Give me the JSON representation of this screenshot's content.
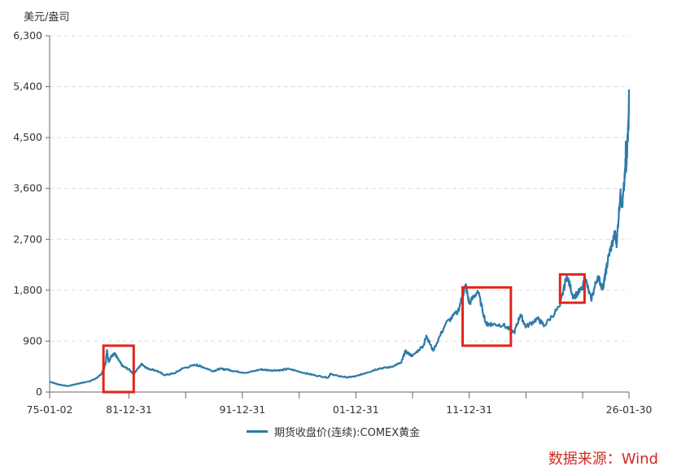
{
  "unit_label": "美元/盎司",
  "source_note": "数据来源：Wind",
  "colors": {
    "line": "#2e7aa8",
    "highlight_box": "#e3241b",
    "grid": "#dcdcdc",
    "axis": "#666666"
  },
  "chart_data": {
    "type": "line",
    "title": "",
    "xlabel": "",
    "ylabel": "美元/盎司",
    "grid": true,
    "legend_position": "bottom",
    "ylim": [
      0,
      6300
    ],
    "y_ticks": [
      0,
      900,
      1800,
      2700,
      3600,
      4500,
      5400,
      6300
    ],
    "y_tick_labels": [
      "0",
      "900",
      "1,800",
      "2,700",
      "3,600",
      "4,500",
      "5,400",
      "6,300"
    ],
    "x_range": [
      "1975-01-02",
      "2026-01-30"
    ],
    "x_tick_labels": [
      {
        "date": "1975-01-02",
        "label": "75-01-02"
      },
      {
        "date": "1981-12-31",
        "label": "81-12-31"
      },
      {
        "date": "1991-12-31",
        "label": "91-12-31"
      },
      {
        "date": "2001-12-31",
        "label": "01-12-31"
      },
      {
        "date": "2011-12-31",
        "label": "11-12-31"
      },
      {
        "date": "2026-01-30",
        "label": "26-01-30"
      }
    ],
    "x_tick_marks": [
      "1975-01-02",
      "1981-12-31",
      "1986-12-31",
      "1991-12-31",
      "1996-12-31",
      "2001-12-31",
      "2006-12-31",
      "2011-12-31",
      "2016-12-31",
      "2021-12-31",
      "2026-01-30"
    ],
    "series": [
      {
        "name": "期货收盘价(连续):COMEX黄金",
        "points": [
          [
            "1975-01-02",
            185
          ],
          [
            "1975-09-01",
            140
          ],
          [
            "1976-08-01",
            105
          ],
          [
            "1977-06-01",
            145
          ],
          [
            "1978-06-01",
            185
          ],
          [
            "1979-01-01",
            230
          ],
          [
            "1979-07-01",
            300
          ],
          [
            "1979-10-01",
            390
          ],
          [
            "1979-12-15",
            520
          ],
          [
            "1980-01-21",
            740
          ],
          [
            "1980-03-15",
            540
          ],
          [
            "1980-06-01",
            620
          ],
          [
            "1980-09-20",
            690
          ],
          [
            "1981-01-01",
            590
          ],
          [
            "1981-06-01",
            460
          ],
          [
            "1981-12-31",
            400
          ],
          [
            "1982-06-01",
            320
          ],
          [
            "1983-02-15",
            500
          ],
          [
            "1983-08-01",
            420
          ],
          [
            "1984-06-01",
            380
          ],
          [
            "1985-02-15",
            300
          ],
          [
            "1986-01-01",
            330
          ],
          [
            "1986-10-01",
            420
          ],
          [
            "1987-12-01",
            480
          ],
          [
            "1988-06-01",
            450
          ],
          [
            "1989-06-01",
            370
          ],
          [
            "1990-01-01",
            410
          ],
          [
            "1990-08-15",
            400
          ],
          [
            "1991-06-01",
            365
          ],
          [
            "1992-06-01",
            340
          ],
          [
            "1993-08-01",
            400
          ],
          [
            "1994-06-01",
            385
          ],
          [
            "1995-06-01",
            387
          ],
          [
            "1996-02-01",
            410
          ],
          [
            "1997-06-01",
            340
          ],
          [
            "1998-06-01",
            295
          ],
          [
            "1999-07-20",
            255
          ],
          [
            "1999-10-05",
            320
          ],
          [
            "2000-06-01",
            285
          ],
          [
            "2001-04-01",
            260
          ],
          [
            "2001-12-31",
            278
          ],
          [
            "2002-12-31",
            347
          ],
          [
            "2003-12-31",
            416
          ],
          [
            "2004-12-31",
            438
          ],
          [
            "2005-12-31",
            517
          ],
          [
            "2006-05-12",
            720
          ],
          [
            "2006-12-31",
            636
          ],
          [
            "2007-12-31",
            836
          ],
          [
            "2008-03-17",
            1000
          ],
          [
            "2008-10-24",
            730
          ],
          [
            "2009-12-03",
            1210
          ],
          [
            "2010-12-31",
            1421
          ],
          [
            "2011-09-06",
            1895
          ],
          [
            "2011-12-31",
            1565
          ],
          [
            "2012-10-01",
            1790
          ],
          [
            "2013-06-28",
            1200
          ],
          [
            "2013-12-31",
            1202
          ],
          [
            "2014-12-31",
            1184
          ],
          [
            "2015-12-17",
            1050
          ],
          [
            "2016-07-06",
            1370
          ],
          [
            "2016-12-31",
            1150
          ],
          [
            "2017-12-31",
            1302
          ],
          [
            "2018-08-16",
            1175
          ],
          [
            "2019-12-31",
            1523
          ],
          [
            "2020-08-06",
            2060
          ],
          [
            "2021-03-08",
            1680
          ],
          [
            "2021-12-31",
            1828
          ],
          [
            "2022-03-08",
            2040
          ],
          [
            "2022-09-28",
            1630
          ],
          [
            "2023-05-03",
            2050
          ],
          [
            "2023-10-05",
            1830
          ],
          [
            "2023-12-31",
            2072
          ],
          [
            "2024-04-12",
            2400
          ],
          [
            "2024-10-30",
            2790
          ],
          [
            "2024-12-31",
            2640
          ],
          [
            "2025-04-22",
            3500
          ],
          [
            "2025-06-30",
            3300
          ],
          [
            "2025-09-30",
            3870
          ],
          [
            "2025-10-20",
            4390
          ],
          [
            "2025-11-05",
            3980
          ],
          [
            "2025-12-26",
            4560
          ],
          [
            "2026-01-20",
            4800
          ],
          [
            "2026-01-30",
            5350
          ]
        ]
      }
    ],
    "highlight_ranges": [
      {
        "x_start": "1979-10-01",
        "x_end": "1982-06-01",
        "y_low": 0,
        "y_high": 820
      },
      {
        "x_start": "2011-06-01",
        "x_end": "2015-09-01",
        "y_low": 820,
        "y_high": 1850
      },
      {
        "x_start": "2020-01-01",
        "x_end": "2022-03-01",
        "y_low": 1580,
        "y_high": 2080
      }
    ]
  },
  "legend": {
    "series_label": "期货收盘价(连续):COMEX黄金"
  }
}
